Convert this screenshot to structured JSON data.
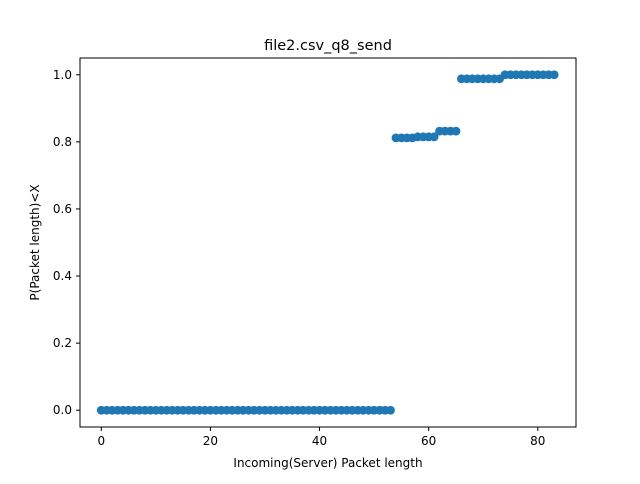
{
  "chart_data": {
    "type": "scatter",
    "title": "file2.csv_q8_send",
    "xlabel": "Incoming(Server) Packet length",
    "ylabel": "P(Packet length)<X",
    "xlim": [
      -3.9,
      87
    ],
    "ylim": [
      -0.05,
      1.05
    ],
    "xticks": [
      0,
      20,
      40,
      60,
      80
    ],
    "yticks": [
      0.0,
      0.2,
      0.4,
      0.6,
      0.8,
      1.0
    ],
    "xtick_labels": [
      "0",
      "20",
      "40",
      "60",
      "80"
    ],
    "ytick_labels": [
      "0.0",
      "0.2",
      "0.4",
      "0.6",
      "0.8",
      "1.0"
    ],
    "grid": false,
    "legend": "none",
    "marker_color": "#1f77b4",
    "x": [
      0,
      1,
      2,
      3,
      4,
      5,
      6,
      7,
      8,
      9,
      10,
      11,
      12,
      13,
      14,
      15,
      16,
      17,
      18,
      19,
      20,
      21,
      22,
      23,
      24,
      25,
      26,
      27,
      28,
      29,
      30,
      31,
      32,
      33,
      34,
      35,
      36,
      37,
      38,
      39,
      40,
      41,
      42,
      43,
      44,
      45,
      46,
      47,
      48,
      49,
      50,
      51,
      52,
      53,
      54,
      55,
      56,
      57,
      58,
      59,
      60,
      61,
      62,
      63,
      64,
      65,
      66,
      67,
      68,
      69,
      70,
      71,
      72,
      73,
      74,
      75,
      76,
      77,
      78,
      79,
      80,
      81,
      82,
      83
    ],
    "y": [
      0,
      0,
      0,
      0,
      0,
      0,
      0,
      0,
      0,
      0,
      0,
      0,
      0,
      0,
      0,
      0,
      0,
      0,
      0,
      0,
      0,
      0,
      0,
      0,
      0,
      0,
      0,
      0,
      0,
      0,
      0,
      0,
      0,
      0,
      0,
      0,
      0,
      0,
      0,
      0,
      0,
      0,
      0,
      0,
      0,
      0,
      0,
      0,
      0,
      0,
      0,
      0,
      0,
      0,
      0.812,
      0.812,
      0.812,
      0.812,
      0.815,
      0.815,
      0.815,
      0.815,
      0.832,
      0.832,
      0.832,
      0.832,
      0.988,
      0.988,
      0.988,
      0.988,
      0.988,
      0.988,
      0.988,
      0.988,
      1.0,
      1.0,
      1.0,
      1.0,
      1.0,
      1.0,
      1.0,
      1.0,
      1.0,
      1.0
    ]
  }
}
